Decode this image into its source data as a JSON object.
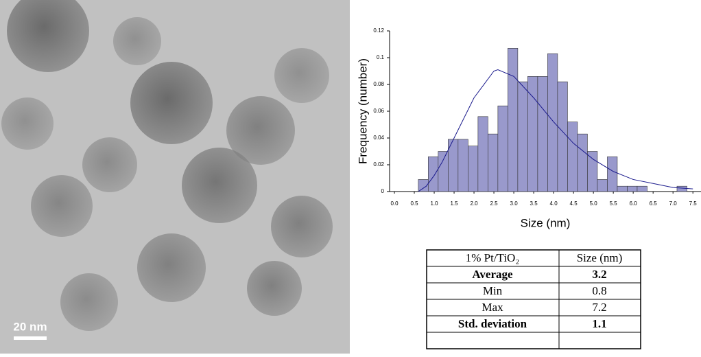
{
  "image": {
    "scale_bar": "20 nm"
  },
  "chart_data": {
    "type": "histogram",
    "ylabel": "Frequency (number)",
    "xlabel": "Size (nm)",
    "color": "#9999cc",
    "bins": [
      0.6,
      0.85,
      1.1,
      1.35,
      1.6,
      1.85,
      2.1,
      2.35,
      2.6,
      2.85,
      3.1,
      3.35,
      3.6,
      3.85,
      4.1,
      4.35,
      4.6,
      4.85,
      5.1,
      5.35,
      5.6,
      5.85,
      6.1,
      6.35,
      6.6,
      6.85,
      7.1,
      7.35
    ],
    "values": [
      0.009,
      0.026,
      0.03,
      0.039,
      0.039,
      0.034,
      0.056,
      0.043,
      0.064,
      0.107,
      0.082,
      0.086,
      0.086,
      0.103,
      0.082,
      0.052,
      0.043,
      0.03,
      0.009,
      0.026,
      0.004,
      0.004,
      0.004,
      0,
      0,
      0,
      0.004
    ],
    "fit": {
      "color": "#1a1a8c",
      "x": [
        0.6,
        0.8,
        1.0,
        1.2,
        1.5,
        2.0,
        2.5,
        2.6,
        3.0,
        3.5,
        4.0,
        4.5,
        5.0,
        5.5,
        6.0,
        6.5,
        7.0,
        7.5
      ],
      "values": [
        0,
        0.004,
        0.012,
        0.022,
        0.04,
        0.07,
        0.09,
        0.091,
        0.086,
        0.07,
        0.052,
        0.036,
        0.024,
        0.015,
        0.009,
        0.006,
        0.003,
        0.002
      ]
    },
    "xlim": [
      0,
      7.6
    ],
    "ylim": [
      0,
      0.12
    ],
    "xticks": [
      {
        "value": 0,
        "label": "0.0"
      },
      0.5,
      {
        "value": 1,
        "label": "1.0"
      },
      1.5,
      {
        "value": 2,
        "label": "2.0"
      },
      2.5,
      {
        "value": 3,
        "label": "3.0"
      },
      3.5,
      {
        "value": 4,
        "label": "4.0"
      },
      4.5,
      {
        "value": 5,
        "label": "5.0"
      },
      5.5,
      {
        "value": 6,
        "label": "6.0"
      },
      6.5,
      {
        "value": 7,
        "label": "7.0"
      },
      7.5
    ],
    "yticks": [
      0,
      0.02,
      0.04,
      0.06,
      0.08,
      0.1,
      0.12
    ]
  },
  "table": {
    "header": [
      "1% Pt/TiO₂",
      "Size (nm)"
    ],
    "rows": [
      [
        "Average",
        "3.2"
      ],
      [
        "Min",
        "0.8"
      ],
      [
        "Max",
        "7.2"
      ],
      [
        "Std. deviation",
        "1.1"
      ]
    ]
  }
}
